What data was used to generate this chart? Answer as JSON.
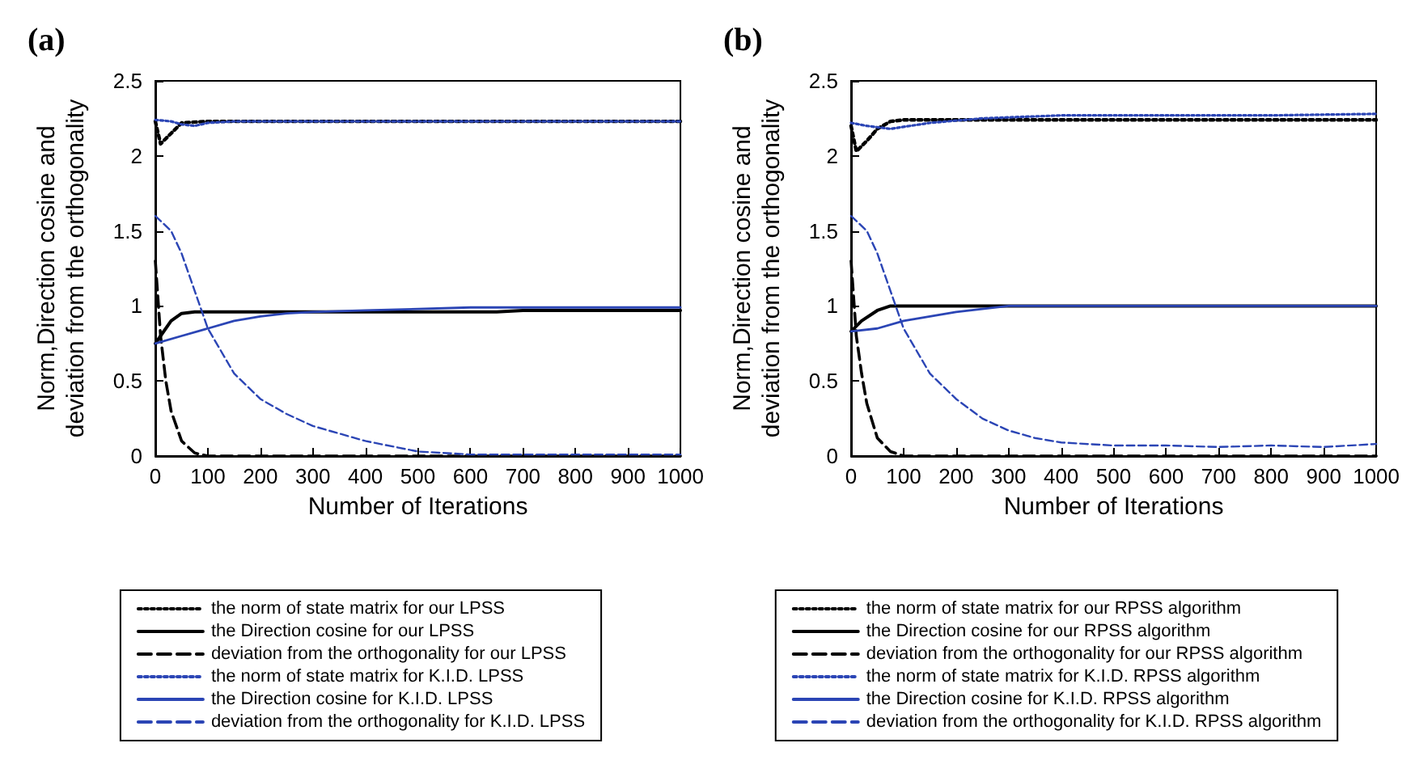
{
  "chart_data": [
    {
      "type": "line",
      "title": "(a)",
      "xlabel": "Number of Iterations",
      "ylabel": "Norm,Direction cosine and\ndeviation from the orthogonality",
      "xlim": [
        0,
        1000
      ],
      "ylim": [
        0,
        2.5
      ],
      "xticks": [
        0,
        100,
        200,
        300,
        400,
        500,
        600,
        700,
        800,
        900,
        1000
      ],
      "yticks": [
        0,
        0.5,
        1,
        1.5,
        2,
        2.5
      ],
      "grid": false,
      "legend": "bottom",
      "marker": "none",
      "series": [
        {
          "name": "the norm of state matrix for our LPSS",
          "color": "#000000",
          "line_style": "dotted",
          "x": [
            0,
            10,
            30,
            50,
            100,
            200,
            500,
            1000
          ],
          "values": [
            2.23,
            2.08,
            2.15,
            2.22,
            2.23,
            2.23,
            2.23,
            2.23
          ]
        },
        {
          "name": "the Direction cosine for our LPSS",
          "color": "#000000",
          "line_style": "solid",
          "x": [
            0,
            10,
            30,
            50,
            75,
            100,
            300,
            650,
            700,
            1000
          ],
          "values": [
            0.75,
            0.8,
            0.9,
            0.95,
            0.96,
            0.96,
            0.96,
            0.96,
            0.97,
            0.97
          ]
        },
        {
          "name": "deviation from the orthogonality for our LPSS",
          "color": "#000000",
          "line_style": "dashed",
          "x": [
            0,
            10,
            20,
            30,
            50,
            75,
            100,
            300,
            1000
          ],
          "values": [
            1.3,
            0.8,
            0.5,
            0.3,
            0.1,
            0.02,
            0,
            0,
            0
          ]
        },
        {
          "name": "the norm of state matrix for K.I.D. LPSS",
          "color": "#2b45b5",
          "line_style": "dotted",
          "x": [
            0,
            30,
            50,
            75,
            100,
            150,
            500,
            1000
          ],
          "values": [
            2.24,
            2.23,
            2.21,
            2.2,
            2.22,
            2.23,
            2.23,
            2.23
          ]
        },
        {
          "name": "the Direction cosine for K.I.D. LPSS",
          "color": "#2b45b5",
          "line_style": "solid",
          "x": [
            0,
            50,
            100,
            150,
            200,
            250,
            300,
            400,
            500,
            600,
            1000
          ],
          "values": [
            0.75,
            0.8,
            0.85,
            0.9,
            0.93,
            0.95,
            0.96,
            0.97,
            0.98,
            0.99,
            0.99
          ]
        },
        {
          "name": "deviation from the orthogonality for K.I.D. LPSS",
          "color": "#2b45b5",
          "line_style": "dashed",
          "x": [
            0,
            30,
            50,
            75,
            100,
            150,
            200,
            250,
            300,
            400,
            500,
            600,
            1000
          ],
          "values": [
            1.6,
            1.5,
            1.35,
            1.1,
            0.85,
            0.55,
            0.38,
            0.28,
            0.2,
            0.1,
            0.03,
            0.01,
            0.01
          ]
        }
      ]
    },
    {
      "type": "line",
      "title": "(b)",
      "xlabel": "Number of Iterations",
      "ylabel": "Norm,Direction cosine and\ndeviation from the orthogonality",
      "xlim": [
        0,
        1000
      ],
      "ylim": [
        0,
        2.5
      ],
      "xticks": [
        0,
        100,
        200,
        300,
        400,
        500,
        600,
        700,
        800,
        900,
        1000
      ],
      "yticks": [
        0,
        0.5,
        1,
        1.5,
        2,
        2.5
      ],
      "grid": false,
      "legend": "bottom",
      "marker": "none",
      "series": [
        {
          "name": "the norm of state matrix for our RPSS algorithm",
          "color": "#000000",
          "line_style": "dotted",
          "x": [
            0,
            10,
            30,
            50,
            75,
            100,
            500,
            1000
          ],
          "values": [
            2.2,
            2.03,
            2.1,
            2.18,
            2.23,
            2.24,
            2.24,
            2.24
          ]
        },
        {
          "name": "the Direction cosine for our RPSS algorithm",
          "color": "#000000",
          "line_style": "solid",
          "x": [
            0,
            20,
            50,
            75,
            300,
            1000
          ],
          "values": [
            0.83,
            0.9,
            0.97,
            1.0,
            1.0,
            1.0
          ]
        },
        {
          "name": "deviation from the orthogonality for our RPSS algorithm",
          "color": "#000000",
          "line_style": "dashed",
          "x": [
            0,
            10,
            20,
            30,
            50,
            75,
            100,
            300,
            1000
          ],
          "values": [
            1.3,
            0.8,
            0.55,
            0.35,
            0.12,
            0.03,
            0,
            0,
            0
          ]
        },
        {
          "name": "the norm of state matrix for K.I.D. RPSS algorithm",
          "color": "#2b45b5",
          "line_style": "dotted",
          "x": [
            0,
            30,
            75,
            150,
            250,
            400,
            600,
            800,
            1000
          ],
          "values": [
            2.22,
            2.2,
            2.18,
            2.22,
            2.25,
            2.27,
            2.27,
            2.27,
            2.28
          ]
        },
        {
          "name": "the Direction cosine for K.I.D. RPSS algorithm",
          "color": "#2b45b5",
          "line_style": "solid",
          "x": [
            0,
            50,
            100,
            150,
            200,
            300,
            1000
          ],
          "values": [
            0.83,
            0.85,
            0.9,
            0.93,
            0.96,
            1.0,
            1.0
          ]
        },
        {
          "name": "deviation from the orthogonality for K.I.D. RPSS algorithm",
          "color": "#2b45b5",
          "line_style": "dashed",
          "x": [
            0,
            30,
            50,
            75,
            100,
            150,
            200,
            250,
            300,
            350,
            400,
            500,
            600,
            700,
            800,
            900,
            1000
          ],
          "values": [
            1.6,
            1.5,
            1.35,
            1.1,
            0.85,
            0.55,
            0.38,
            0.25,
            0.17,
            0.12,
            0.09,
            0.07,
            0.07,
            0.06,
            0.07,
            0.06,
            0.08
          ]
        }
      ]
    }
  ]
}
